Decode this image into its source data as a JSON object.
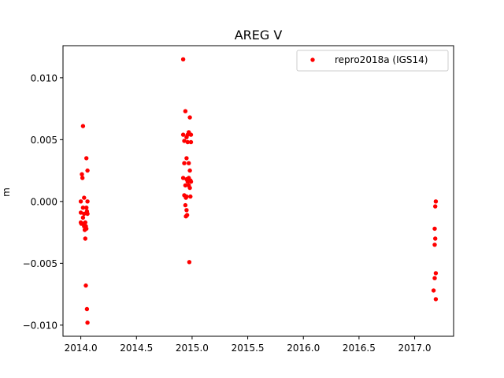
{
  "chart_data": {
    "type": "scatter",
    "title": "AREG V",
    "xlabel": "",
    "ylabel": "m",
    "xlim": [
      2013.84,
      2017.35
    ],
    "ylim": [
      -0.0109,
      0.0126
    ],
    "x_ticks": [
      2014.0,
      2014.5,
      2015.0,
      2015.5,
      2016.0,
      2016.5,
      2017.0
    ],
    "x_tick_labels": [
      "2014.0",
      "2014.5",
      "2015.0",
      "2015.5",
      "2016.0",
      "2016.5",
      "2017.0"
    ],
    "y_ticks": [
      -0.01,
      -0.005,
      0.0,
      0.005,
      0.01
    ],
    "y_tick_labels": [
      "−0.010",
      "−0.005",
      "0.000",
      "0.005",
      "0.010"
    ],
    "grid": false,
    "legend_position": "upper-right",
    "series": [
      {
        "name": "repro2018a (IGS14)",
        "color": "#ff0000",
        "marker": "circle",
        "points": [
          [
            2014.02,
            0.0061
          ],
          [
            2014.05,
            0.0035
          ],
          [
            2014.06,
            0.0025
          ],
          [
            2014.01,
            0.0022
          ],
          [
            2014.015,
            0.0019
          ],
          [
            2014.03,
            0.0003
          ],
          [
            2014.0,
            0.0
          ],
          [
            2014.06,
            0.0
          ],
          [
            2014.02,
            -0.0005
          ],
          [
            2014.05,
            -0.0005
          ],
          [
            2014.0,
            -0.0009
          ],
          [
            2014.03,
            -0.001
          ],
          [
            2014.055,
            -0.0008
          ],
          [
            2014.06,
            -0.001
          ],
          [
            2014.02,
            -0.0013
          ],
          [
            2014.0,
            -0.0017
          ],
          [
            2014.02,
            -0.0018
          ],
          [
            2014.04,
            -0.0017
          ],
          [
            2014.005,
            -0.0018
          ],
          [
            2014.03,
            -0.002
          ],
          [
            2014.045,
            -0.002
          ],
          [
            2014.05,
            -0.0022
          ],
          [
            2014.035,
            -0.0023
          ],
          [
            2014.04,
            -0.003
          ],
          [
            2014.045,
            -0.0068
          ],
          [
            2014.055,
            -0.0087
          ],
          [
            2014.06,
            -0.0098
          ],
          [
            2014.92,
            0.0115
          ],
          [
            2014.94,
            0.0073
          ],
          [
            2014.98,
            0.0068
          ],
          [
            2014.97,
            0.0056
          ],
          [
            2014.92,
            0.0054
          ],
          [
            2014.96,
            0.0054
          ],
          [
            2014.99,
            0.0054
          ],
          [
            2014.95,
            0.0052
          ],
          [
            2014.93,
            0.0049
          ],
          [
            2014.96,
            0.0048
          ],
          [
            2014.99,
            0.0048
          ],
          [
            2014.95,
            0.0035
          ],
          [
            2014.93,
            0.0031
          ],
          [
            2014.97,
            0.0031
          ],
          [
            2014.98,
            0.0025
          ],
          [
            2014.92,
            0.0019
          ],
          [
            2014.95,
            0.0018
          ],
          [
            2014.97,
            0.0019
          ],
          [
            2014.985,
            0.0017
          ],
          [
            2014.96,
            0.0016
          ],
          [
            2014.99,
            0.0016
          ],
          [
            2014.94,
            0.0013
          ],
          [
            2014.97,
            0.0013
          ],
          [
            2014.98,
            0.0011
          ],
          [
            2014.93,
            0.0005
          ],
          [
            2014.95,
            0.0004
          ],
          [
            2014.945,
            0.0003
          ],
          [
            2014.985,
            0.0004
          ],
          [
            2014.94,
            -0.0003
          ],
          [
            2014.95,
            -0.0007
          ],
          [
            2014.955,
            -0.0011
          ],
          [
            2014.945,
            -0.0012
          ],
          [
            2014.975,
            -0.0049
          ],
          [
            2017.19,
            0.0
          ],
          [
            2017.185,
            -0.0004
          ],
          [
            2017.18,
            -0.0022
          ],
          [
            2017.185,
            -0.003
          ],
          [
            2017.18,
            -0.0035
          ],
          [
            2017.19,
            -0.0058
          ],
          [
            2017.18,
            -0.0062
          ],
          [
            2017.17,
            -0.0072
          ],
          [
            2017.19,
            -0.0079
          ]
        ]
      }
    ]
  }
}
